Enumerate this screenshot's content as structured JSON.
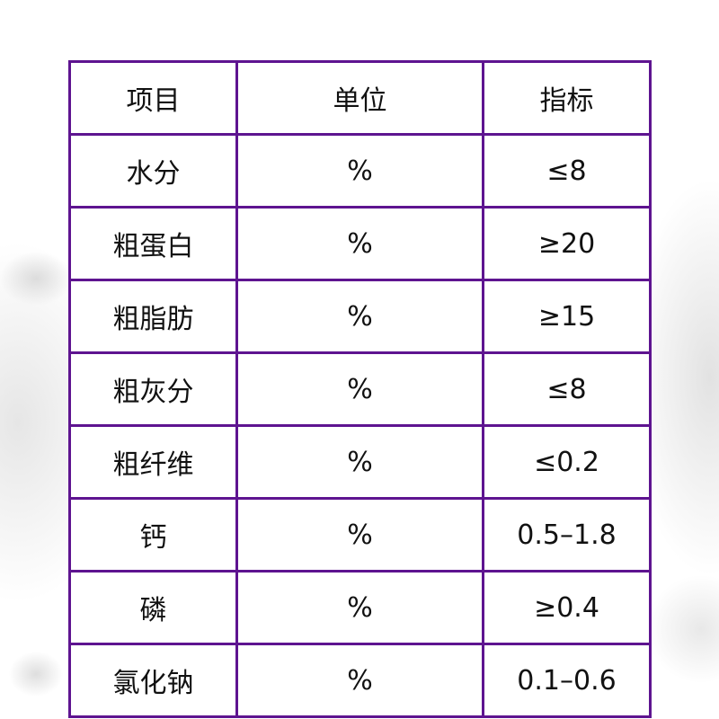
{
  "colors": {
    "border": "#5e1490"
  },
  "table": {
    "headers": [
      "项目",
      "单位",
      "指标"
    ],
    "rows": [
      [
        "水分",
        "%",
        "≤8"
      ],
      [
        "粗蛋白",
        "%",
        "≥20"
      ],
      [
        "粗脂肪",
        "%",
        "≥15"
      ],
      [
        "粗灰分",
        "%",
        "≤8"
      ],
      [
        "粗纤维",
        "%",
        "≤0.2"
      ],
      [
        "钙",
        "%",
        "0.5–1.8"
      ],
      [
        "磷",
        "%",
        "≥0.4"
      ],
      [
        "氯化钠",
        "%",
        "0.1–0.6"
      ]
    ]
  }
}
